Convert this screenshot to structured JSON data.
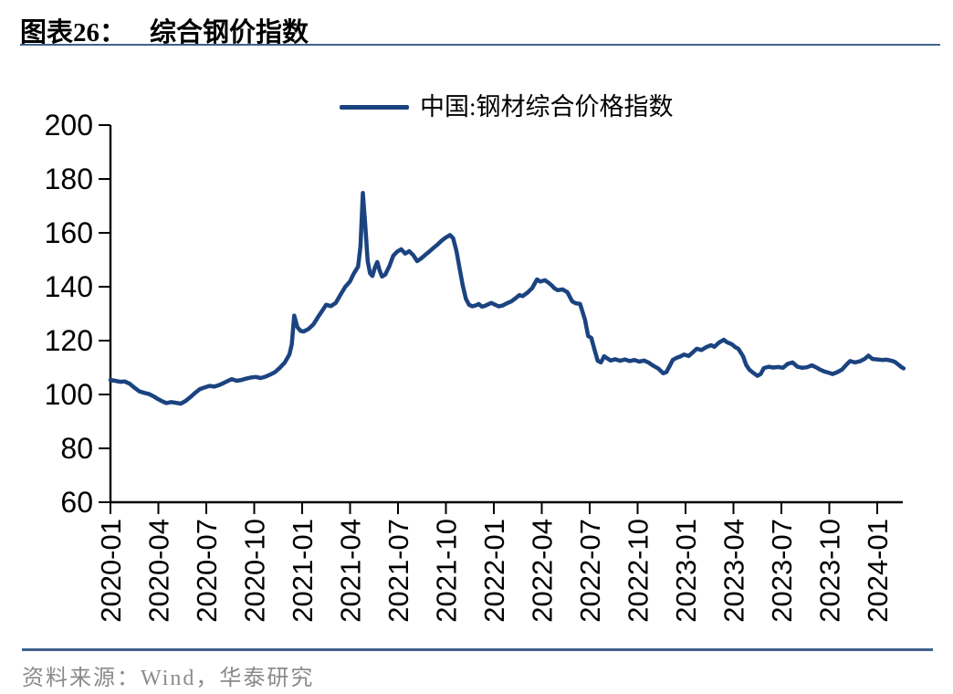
{
  "header": {
    "chart_label": "图表26：",
    "chart_title": "综合钢价指数"
  },
  "footer": {
    "source": "资料来源：Wind，华泰研究"
  },
  "colors": {
    "line": "#1B4380",
    "rule": "#40618F",
    "axis": "#000000",
    "source_text": "#8A8A8A"
  },
  "chart_data": {
    "type": "line",
    "title": "综合钢价指数",
    "legend_position": "top-center",
    "grid": false,
    "xlabel": "",
    "ylabel": "",
    "ylim": [
      60,
      200
    ],
    "y_ticks": [
      60,
      80,
      100,
      120,
      140,
      160,
      180,
      200
    ],
    "x_tick_labels": [
      "2020-01",
      "2020-04",
      "2020-07",
      "2020-10",
      "2021-01",
      "2021-04",
      "2021-07",
      "2021-10",
      "2022-01",
      "2022-04",
      "2022-07",
      "2022-10",
      "2023-01",
      "2023-04",
      "2023-07",
      "2023-10",
      "2024-01"
    ],
    "x_unit": "months since 2020-01 (fractional)",
    "x_range_months": [
      0,
      49.65
    ],
    "series": [
      {
        "name": "中国:钢材综合价格指数",
        "color": "#1B4380",
        "points": [
          [
            0,
            105.4
          ],
          [
            0.3,
            105.1
          ],
          [
            0.6,
            104.7
          ],
          [
            0.9,
            104.8
          ],
          [
            1.2,
            104.0
          ],
          [
            1.5,
            102.5
          ],
          [
            1.8,
            101.2
          ],
          [
            2.1,
            100.6
          ],
          [
            2.4,
            100.2
          ],
          [
            2.7,
            99.3
          ],
          [
            3,
            98.2
          ],
          [
            3.3,
            97.3
          ],
          [
            3.5,
            96.8
          ],
          [
            3.8,
            97.2
          ],
          [
            4.1,
            96.9
          ],
          [
            4.4,
            96.6
          ],
          [
            4.7,
            97.6
          ],
          [
            5,
            99.0
          ],
          [
            5.3,
            100.6
          ],
          [
            5.6,
            102.0
          ],
          [
            5.9,
            102.6
          ],
          [
            6.2,
            103.2
          ],
          [
            6.5,
            102.9
          ],
          [
            6.8,
            103.5
          ],
          [
            7.1,
            104.3
          ],
          [
            7.4,
            105.2
          ],
          [
            7.6,
            105.7
          ],
          [
            7.9,
            105.1
          ],
          [
            8.2,
            105.4
          ],
          [
            8.5,
            105.9
          ],
          [
            8.8,
            106.3
          ],
          [
            9.1,
            106.5
          ],
          [
            9.4,
            106.1
          ],
          [
            9.7,
            106.6
          ],
          [
            10,
            107.4
          ],
          [
            10.3,
            108.3
          ],
          [
            10.6,
            109.9
          ],
          [
            10.9,
            111.8
          ],
          [
            11.2,
            114.8
          ],
          [
            11.35,
            118.5
          ],
          [
            11.5,
            129.3
          ],
          [
            11.7,
            125.0
          ],
          [
            11.9,
            123.6
          ],
          [
            12.1,
            123.4
          ],
          [
            12.4,
            124.3
          ],
          [
            12.7,
            126.0
          ],
          [
            13,
            128.8
          ],
          [
            13.3,
            131.5
          ],
          [
            13.5,
            133.3
          ],
          [
            13.8,
            132.8
          ],
          [
            14.1,
            134.0
          ],
          [
            14.4,
            137.0
          ],
          [
            14.7,
            140.0
          ],
          [
            15,
            142.0
          ],
          [
            15.2,
            144.5
          ],
          [
            15.35,
            146.0
          ],
          [
            15.5,
            147.5
          ],
          [
            15.65,
            155.0
          ],
          [
            15.8,
            174.8
          ],
          [
            15.95,
            163.0
          ],
          [
            16.1,
            149.5
          ],
          [
            16.25,
            145.0
          ],
          [
            16.4,
            144.0
          ],
          [
            16.55,
            147.0
          ],
          [
            16.7,
            149.2
          ],
          [
            16.85,
            146.0
          ],
          [
            17,
            143.8
          ],
          [
            17.2,
            144.5
          ],
          [
            17.45,
            147.5
          ],
          [
            17.7,
            151.5
          ],
          [
            17.95,
            153.0
          ],
          [
            18.2,
            153.9
          ],
          [
            18.45,
            152.3
          ],
          [
            18.7,
            153.2
          ],
          [
            18.95,
            151.8
          ],
          [
            19.2,
            149.5
          ],
          [
            19.45,
            150.5
          ],
          [
            19.7,
            151.8
          ],
          [
            19.95,
            153.0
          ],
          [
            20.2,
            154.3
          ],
          [
            20.5,
            155.8
          ],
          [
            20.75,
            157.2
          ],
          [
            21,
            158.3
          ],
          [
            21.25,
            159.2
          ],
          [
            21.45,
            158.0
          ],
          [
            21.65,
            153.5
          ],
          [
            21.85,
            147.0
          ],
          [
            22.05,
            140.5
          ],
          [
            22.25,
            135.5
          ],
          [
            22.45,
            133.3
          ],
          [
            22.65,
            132.7
          ],
          [
            22.85,
            133.0
          ],
          [
            23.05,
            133.6
          ],
          [
            23.25,
            132.6
          ],
          [
            23.45,
            132.9
          ],
          [
            23.65,
            133.5
          ],
          [
            23.85,
            134.0
          ],
          [
            24.05,
            133.4
          ],
          [
            24.3,
            132.7
          ],
          [
            24.55,
            133.0
          ],
          [
            24.8,
            133.8
          ],
          [
            25.1,
            134.6
          ],
          [
            25.4,
            135.9
          ],
          [
            25.6,
            136.9
          ],
          [
            25.8,
            136.5
          ],
          [
            26.1,
            137.8
          ],
          [
            26.4,
            139.5
          ],
          [
            26.7,
            142.7
          ],
          [
            26.9,
            141.9
          ],
          [
            27.2,
            142.4
          ],
          [
            27.4,
            141.6
          ],
          [
            27.6,
            140.6
          ],
          [
            27.8,
            139.4
          ],
          [
            28,
            138.7
          ],
          [
            28.3,
            139.0
          ],
          [
            28.6,
            138.0
          ],
          [
            28.9,
            134.6
          ],
          [
            29.1,
            133.9
          ],
          [
            29.4,
            133.6
          ],
          [
            29.7,
            127.8
          ],
          [
            29.9,
            121.7
          ],
          [
            30.1,
            121.0
          ],
          [
            30.3,
            116.6
          ],
          [
            30.5,
            112.5
          ],
          [
            30.7,
            111.9
          ],
          [
            30.9,
            114.2
          ],
          [
            31.1,
            113.4
          ],
          [
            31.3,
            112.6
          ],
          [
            31.6,
            113.1
          ],
          [
            31.9,
            112.5
          ],
          [
            32.2,
            113.0
          ],
          [
            32.5,
            112.4
          ],
          [
            32.8,
            112.8
          ],
          [
            33.1,
            112.2
          ],
          [
            33.4,
            112.6
          ],
          [
            33.7,
            111.8
          ],
          [
            34,
            110.6
          ],
          [
            34.3,
            109.6
          ],
          [
            34.6,
            107.9
          ],
          [
            34.8,
            108.3
          ],
          [
            35,
            110.5
          ],
          [
            35.2,
            112.8
          ],
          [
            35.4,
            113.5
          ],
          [
            35.7,
            114.2
          ],
          [
            35.9,
            114.8
          ],
          [
            36.2,
            114.3
          ],
          [
            36.5,
            115.9
          ],
          [
            36.7,
            117.0
          ],
          [
            37,
            116.5
          ],
          [
            37.3,
            117.6
          ],
          [
            37.6,
            118.3
          ],
          [
            37.8,
            117.7
          ],
          [
            38.1,
            119.3
          ],
          [
            38.4,
            120.3
          ],
          [
            38.6,
            119.4
          ],
          [
            38.9,
            118.6
          ],
          [
            39.1,
            117.6
          ],
          [
            39.3,
            117.0
          ],
          [
            39.6,
            114.2
          ],
          [
            39.8,
            110.9
          ],
          [
            40,
            109.2
          ],
          [
            40.2,
            108.2
          ],
          [
            40.5,
            106.9
          ],
          [
            40.7,
            107.6
          ],
          [
            40.9,
            109.8
          ],
          [
            41.2,
            110.3
          ],
          [
            41.5,
            110.0
          ],
          [
            41.8,
            110.2
          ],
          [
            42.1,
            109.9
          ],
          [
            42.4,
            111.4
          ],
          [
            42.7,
            111.9
          ],
          [
            43,
            110.3
          ],
          [
            43.3,
            109.9
          ],
          [
            43.6,
            110.1
          ],
          [
            43.9,
            110.8
          ],
          [
            44.2,
            110.0
          ],
          [
            44.4,
            109.3
          ],
          [
            44.7,
            108.5
          ],
          [
            45,
            108.0
          ],
          [
            45.2,
            107.6
          ],
          [
            45.5,
            108.3
          ],
          [
            45.8,
            109.3
          ],
          [
            46.1,
            111.3
          ],
          [
            46.3,
            112.4
          ],
          [
            46.6,
            111.9
          ],
          [
            46.9,
            112.3
          ],
          [
            47.2,
            113.2
          ],
          [
            47.45,
            114.4
          ],
          [
            47.7,
            113.2
          ],
          [
            48,
            113.0
          ],
          [
            48.3,
            112.8
          ],
          [
            48.6,
            112.9
          ],
          [
            48.9,
            112.5
          ],
          [
            49.1,
            112.1
          ],
          [
            49.3,
            111.2
          ],
          [
            49.5,
            110.2
          ],
          [
            49.65,
            109.7
          ]
        ]
      }
    ]
  }
}
